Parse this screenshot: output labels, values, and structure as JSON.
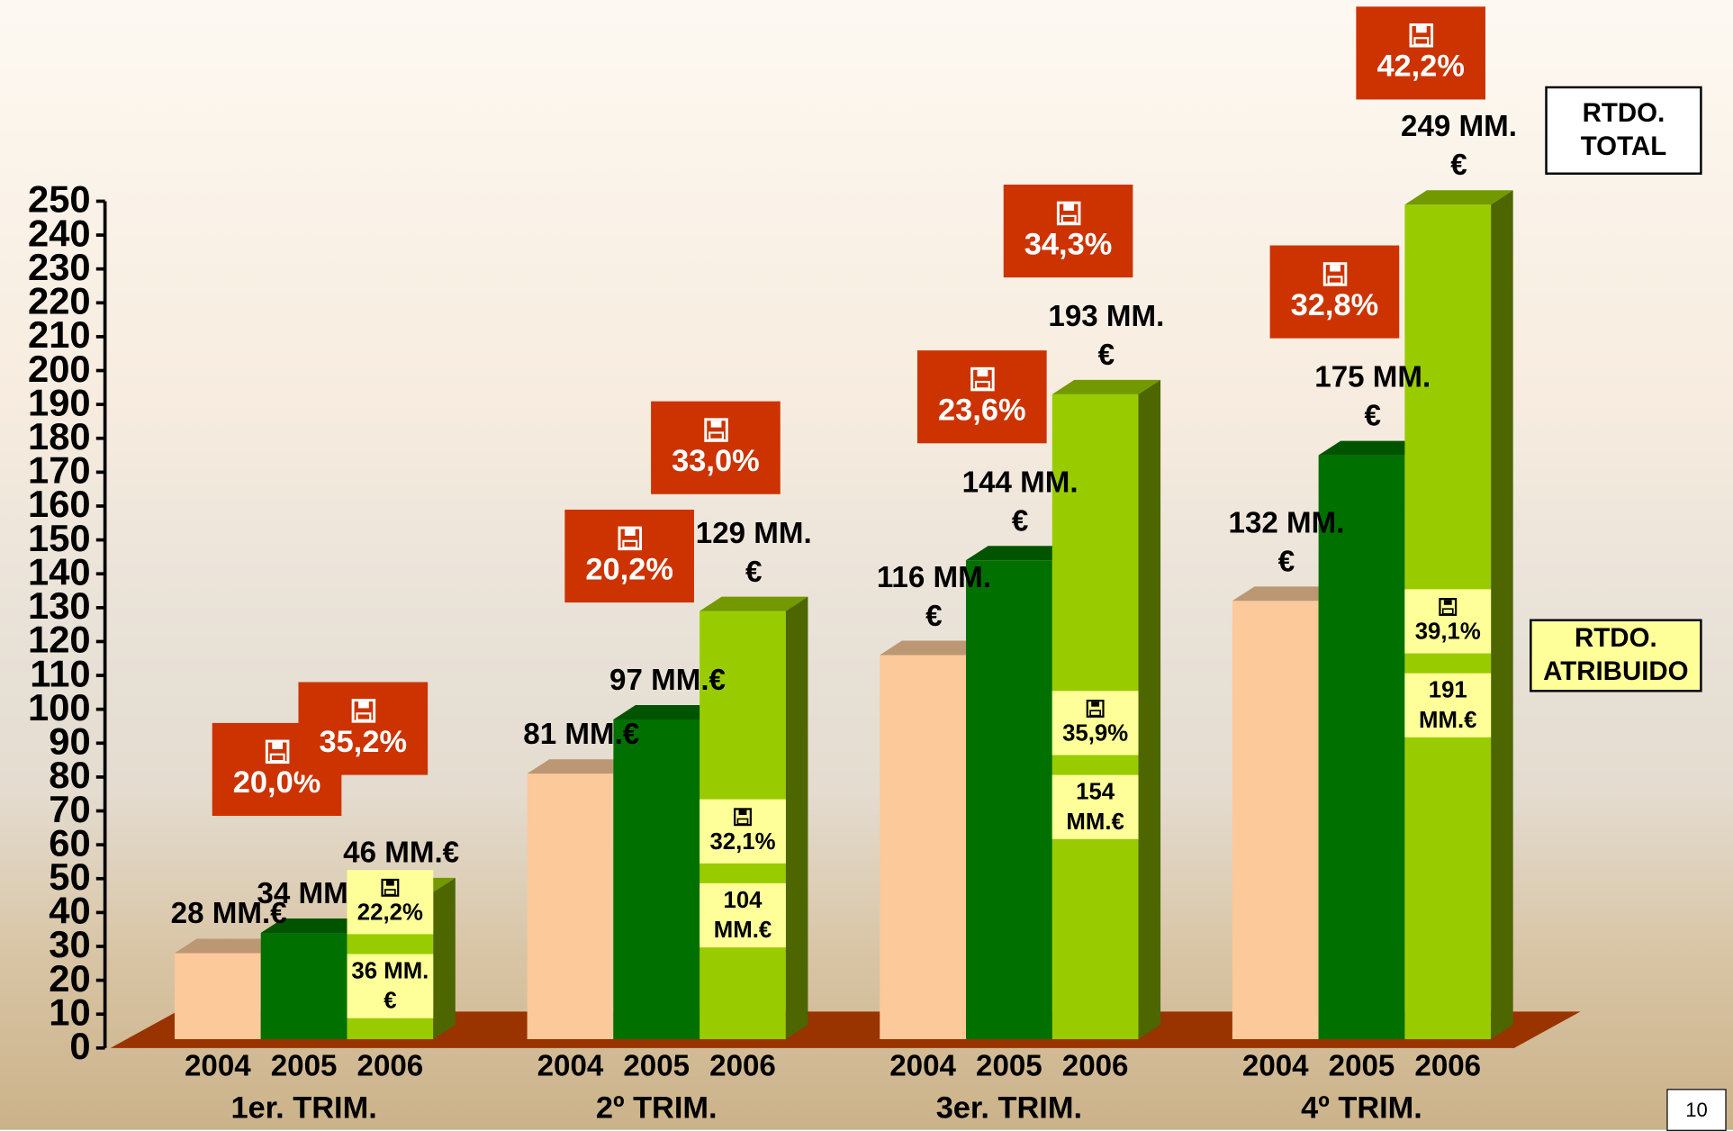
{
  "chart_data": {
    "type": "bar",
    "categories": [
      "1er. TRIM.",
      "2º TRIM.",
      "3er. TRIM.",
      "4º TRIM."
    ],
    "series": [
      {
        "name": "2004",
        "color": "#fbc99a",
        "values": [
          28,
          81,
          116,
          132
        ],
        "value_labels": [
          "28 MM.€",
          "81 MM.€",
          "116 MM.€",
          "132 MM.€"
        ]
      },
      {
        "name": "2005",
        "color": "#007000",
        "values": [
          34,
          97,
          144,
          175
        ],
        "value_labels": [
          "34 MM.€",
          "97 MM.€",
          "144 MM.€",
          "175 MM.€"
        ],
        "growth_labels": [
          "20,0%",
          "20,2%",
          "23,6%",
          "32,8%"
        ]
      },
      {
        "name": "2006",
        "color": "#99cc00",
        "values": [
          46,
          129,
          193,
          249
        ],
        "value_labels": [
          "46 MM.€",
          "129 MM.€",
          "193 MM.€",
          "249 MM.€"
        ],
        "growth_labels": [
          "35,2%",
          "33,0%",
          "34,3%",
          "42,2%"
        ]
      }
    ],
    "total_label": "RTDO. TOTAL",
    "attributed": {
      "name": "RTDO. ATRIBUIDO",
      "labels": [
        "36 MM.€",
        "104 MM.€",
        "154 MM.€",
        "191 MM.€"
      ],
      "growth_labels": [
        "22,2%",
        "32,1%",
        "35,9%",
        "39,1%"
      ]
    },
    "ylim": [
      0,
      250
    ],
    "yticks": [
      0,
      10,
      20,
      30,
      40,
      50,
      60,
      70,
      80,
      90,
      100,
      110,
      120,
      130,
      140,
      150,
      160,
      170,
      180,
      190,
      200,
      210,
      220,
      230,
      240,
      250
    ]
  },
  "footer": {
    "page_number": "10"
  }
}
